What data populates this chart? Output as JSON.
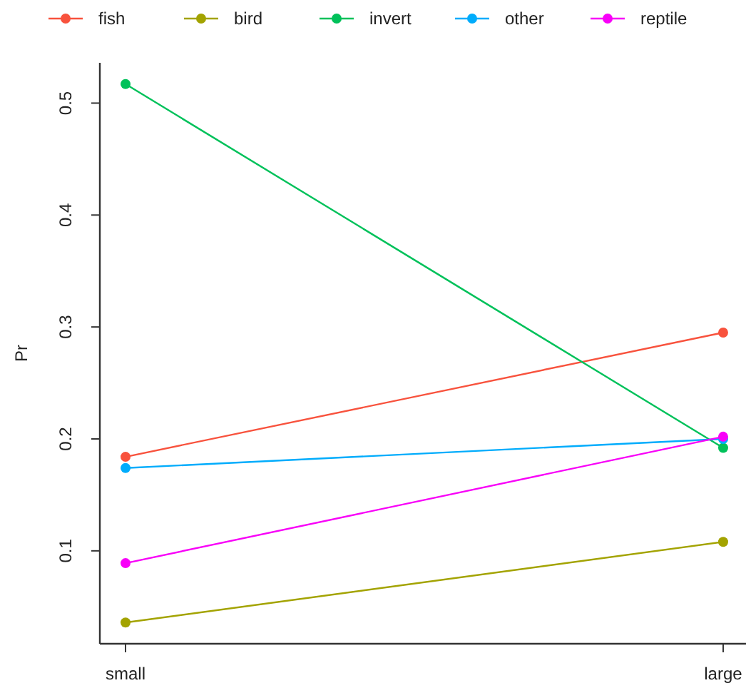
{
  "chart_data": {
    "type": "line",
    "ylabel": "Pr",
    "categories": [
      "small",
      "large"
    ],
    "series": [
      {
        "name": "fish",
        "color": "#f8523d",
        "values": [
          0.184,
          0.295
        ]
      },
      {
        "name": "bird",
        "color": "#a3a300",
        "values": [
          0.036,
          0.108
        ]
      },
      {
        "name": "invert",
        "color": "#00c15a",
        "values": [
          0.517,
          0.192
        ]
      },
      {
        "name": "other",
        "color": "#00acfc",
        "values": [
          0.174,
          0.2
        ]
      },
      {
        "name": "reptile",
        "color": "#f800f8",
        "values": [
          0.089,
          0.202
        ]
      }
    ],
    "ylim": [
      0.017,
      0.536
    ],
    "yticks": [
      0.1,
      0.2,
      0.3,
      0.4,
      0.5
    ],
    "marker": "circle",
    "legend": "top",
    "grid": false
  }
}
